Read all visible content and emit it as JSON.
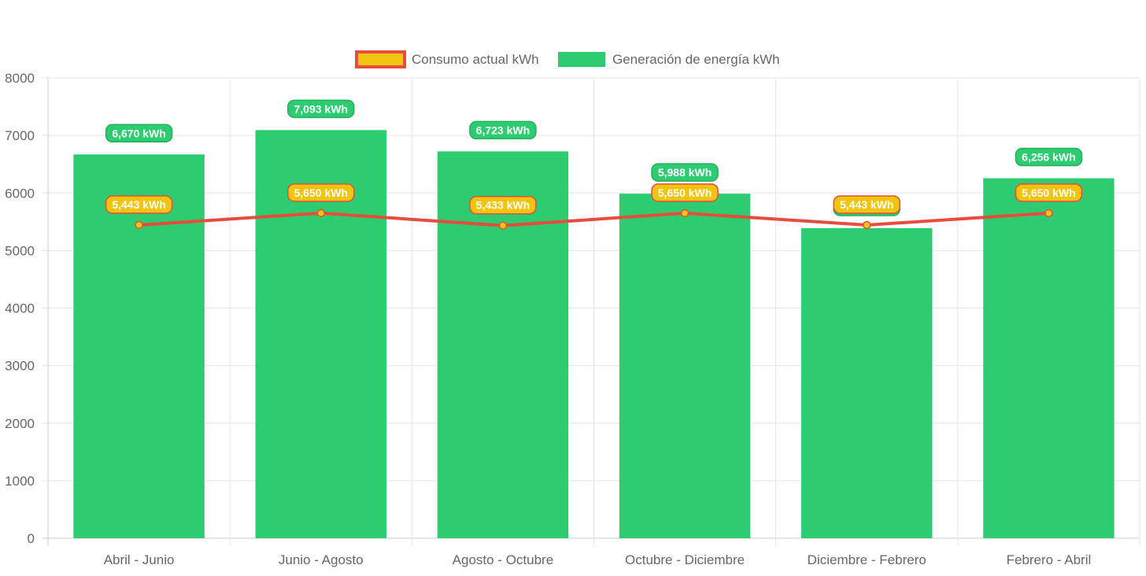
{
  "chart_data": {
    "type": "bar",
    "categories": [
      "Abril - Junio",
      "Junio - Agosto",
      "Agosto - Octubre",
      "Octubre - Diciembre",
      "Diciembre - Febrero",
      "Febrero - Abril"
    ],
    "series": [
      {
        "name": "Consumo actual kWh",
        "type": "line",
        "values": [
          5443,
          5650,
          5433,
          5650,
          5443,
          5650
        ],
        "labels": [
          "5,443 kWh",
          "5,650 kWh",
          "5,433 kWh",
          "5,650 kWh",
          "5,443 kWh",
          "5,650 kWh"
        ],
        "color": "#e74c3c",
        "fill": "#f1c40f"
      },
      {
        "name": "Generación de energía kWh",
        "type": "bar",
        "values": [
          6670,
          7093,
          6723,
          5988,
          5388,
          6256
        ],
        "labels": [
          "6,670 kWh",
          "7,093 kWh",
          "6,723 kWh",
          "5,988 kWh",
          "",
          "6,256 kWh"
        ],
        "color": "#2ecc71"
      }
    ],
    "yticks": [
      "0",
      "1000",
      "2000",
      "3000",
      "4000",
      "5000",
      "6000",
      "7000",
      "8000"
    ],
    "ylim": [
      0,
      8000
    ],
    "grid": true,
    "legend_position": "top"
  }
}
